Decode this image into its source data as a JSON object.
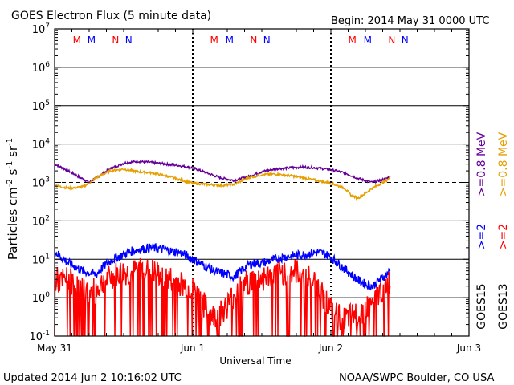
{
  "header": {
    "title": "GOES Electron Flux (5 minute data)",
    "begin": "Begin: 2014 May 31 0000 UTC"
  },
  "footer": {
    "updated": "Updated 2014 Jun  2 10:16:02 UTC",
    "credit": "NOAA/SWPC Boulder, CO USA"
  },
  "colors": {
    "goes15_high": "#0000ff",
    "goes13_high": "#ff0000",
    "goes15_low": "#660099",
    "goes13_low": "#e69f00",
    "frame": "#000000",
    "background": "#ffffff"
  },
  "chart_data": {
    "type": "line",
    "title": "GOES Electron Flux (5 minute data)",
    "xlabel": "Universal Time",
    "ylabel": "Particles cm^-2 s^-1 sr^-1",
    "y_scale": "log",
    "ylim_exponents": [
      -1,
      7
    ],
    "y_tick_exponents": [
      -1,
      0,
      1,
      2,
      3,
      4,
      5,
      6,
      7
    ],
    "xlim_days": [
      0,
      3
    ],
    "x_ticks": [
      {
        "day": 0,
        "label": "May 31"
      },
      {
        "day": 1,
        "label": "Jun 1"
      },
      {
        "day": 2,
        "label": "Jun 2"
      },
      {
        "day": 3,
        "label": "Jun 3"
      }
    ],
    "day_boundaries": [
      1,
      2
    ],
    "threshold_line_exponent": 3,
    "horizontal_grid_exponents": [
      0,
      1,
      2,
      4,
      5,
      6
    ],
    "grid": true,
    "markers": [
      {
        "label": "M",
        "day": 0.162,
        "color": "#ff0000"
      },
      {
        "label": "M",
        "day": 0.267,
        "color": "#0000ff"
      },
      {
        "label": "N",
        "day": 0.441,
        "color": "#ff0000"
      },
      {
        "label": "N",
        "day": 0.536,
        "color": "#0000ff"
      },
      {
        "label": "M",
        "day": 1.155,
        "color": "#ff0000"
      },
      {
        "label": "M",
        "day": 1.266,
        "color": "#0000ff"
      },
      {
        "label": "N",
        "day": 1.441,
        "color": "#ff0000"
      },
      {
        "label": "N",
        "day": 1.536,
        "color": "#0000ff"
      },
      {
        "label": "M",
        "day": 2.155,
        "color": "#ff0000"
      },
      {
        "label": "M",
        "day": 2.266,
        "color": "#0000ff"
      },
      {
        "label": "N",
        "day": 2.441,
        "color": "#ff0000"
      },
      {
        "label": "N",
        "day": 2.536,
        "color": "#0000ff"
      }
    ],
    "legend": [
      {
        "group": "GOES13",
        "labels": [
          ">=2",
          ">=0.8 MeV"
        ],
        "colors": [
          "#ff0000",
          "#e69f00"
        ]
      },
      {
        "group": "GOES15",
        "labels": [
          ">=2",
          ">=0.8 MeV"
        ],
        "colors": [
          "#0000ff",
          "#660099"
        ]
      }
    ],
    "series": [
      {
        "name": "GOES15 >=0.8 MeV",
        "color": "#660099",
        "x": [
          0,
          0.1,
          0.2,
          0.25,
          0.3,
          0.4,
          0.5,
          0.6,
          0.7,
          0.8,
          0.9,
          1.0,
          1.1,
          1.2,
          1.3,
          1.4,
          1.5,
          1.6,
          1.7,
          1.8,
          1.9,
          2.0,
          2.1,
          2.2,
          2.3,
          2.35,
          2.4,
          2.43
        ],
        "values_log10": [
          3.48,
          3.3,
          3.1,
          3.0,
          3.12,
          3.35,
          3.5,
          3.55,
          3.52,
          3.48,
          3.44,
          3.38,
          3.25,
          3.12,
          3.05,
          3.15,
          3.28,
          3.35,
          3.38,
          3.4,
          3.38,
          3.33,
          3.25,
          3.1,
          3.0,
          3.05,
          3.1,
          3.15
        ]
      },
      {
        "name": "GOES13 >=0.8 MeV",
        "color": "#e69f00",
        "x": [
          0,
          0.1,
          0.2,
          0.25,
          0.3,
          0.4,
          0.5,
          0.6,
          0.7,
          0.8,
          0.9,
          1.0,
          1.1,
          1.2,
          1.3,
          1.4,
          1.5,
          1.6,
          1.7,
          1.8,
          1.9,
          2.0,
          2.1,
          2.15,
          2.2,
          2.25,
          2.3,
          2.35,
          2.4,
          2.43
        ],
        "values_log10": [
          2.92,
          2.85,
          2.88,
          2.98,
          3.12,
          3.3,
          3.35,
          3.28,
          3.25,
          3.18,
          3.08,
          2.98,
          2.95,
          2.92,
          2.95,
          3.12,
          3.2,
          3.22,
          3.18,
          3.12,
          3.05,
          2.98,
          2.85,
          2.65,
          2.6,
          2.72,
          2.85,
          2.95,
          3.05,
          3.12
        ]
      },
      {
        "name": "GOES15 >=2 MeV",
        "color": "#0000ff",
        "x": [
          0,
          0.05,
          0.1,
          0.15,
          0.2,
          0.25,
          0.3,
          0.35,
          0.4,
          0.45,
          0.5,
          0.55,
          0.6,
          0.65,
          0.7,
          0.75,
          0.8,
          0.85,
          0.9,
          0.95,
          1.0,
          1.05,
          1.1,
          1.15,
          1.2,
          1.25,
          1.3,
          1.35,
          1.4,
          1.45,
          1.5,
          1.55,
          1.6,
          1.65,
          1.7,
          1.75,
          1.8,
          1.85,
          1.9,
          1.95,
          2.0,
          2.05,
          2.1,
          2.15,
          2.2,
          2.25,
          2.3,
          2.35,
          2.4,
          2.43
        ],
        "values_log10": [
          1.2,
          1.05,
          0.9,
          0.8,
          0.7,
          0.65,
          0.6,
          0.8,
          0.95,
          1.05,
          1.12,
          1.2,
          1.25,
          1.28,
          1.3,
          1.28,
          1.25,
          1.2,
          1.18,
          1.1,
          1.0,
          0.9,
          0.8,
          0.7,
          0.65,
          0.6,
          0.55,
          0.7,
          0.85,
          0.9,
          0.9,
          0.95,
          1.0,
          1.05,
          1.08,
          1.1,
          1.12,
          1.15,
          1.18,
          1.15,
          1.05,
          0.9,
          0.75,
          0.6,
          0.45,
          0.35,
          0.3,
          0.45,
          0.6,
          0.7
        ]
      },
      {
        "name": "GOES13 >=2 MeV",
        "color": "#ff0000",
        "x": [
          0,
          0.05,
          0.1,
          0.15,
          0.2,
          0.25,
          0.3,
          0.35,
          0.4,
          0.45,
          0.5,
          0.55,
          0.6,
          0.65,
          0.7,
          0.75,
          0.8,
          0.85,
          0.9,
          0.95,
          1.0,
          1.05,
          1.1,
          1.15,
          1.2,
          1.25,
          1.3,
          1.35,
          1.4,
          1.45,
          1.5,
          1.55,
          1.6,
          1.65,
          1.7,
          1.75,
          1.8,
          1.85,
          1.9,
          1.95,
          2.0,
          2.05,
          2.1,
          2.15,
          2.2,
          2.25,
          2.3,
          2.35,
          2.4,
          2.43
        ],
        "values_log10": [
          0.5,
          0.4,
          0.5,
          0.3,
          0.2,
          0.1,
          0.2,
          0.4,
          0.5,
          0.6,
          0.65,
          0.6,
          0.7,
          0.75,
          0.7,
          0.6,
          0.5,
          0.45,
          0.4,
          0.3,
          0.2,
          0.0,
          -0.3,
          -0.5,
          -0.4,
          -0.2,
          0.1,
          0.3,
          0.4,
          0.45,
          0.5,
          0.55,
          0.6,
          0.65,
          0.7,
          0.65,
          0.6,
          0.5,
          0.3,
          0.0,
          -0.3,
          -0.5,
          -0.6,
          -0.5,
          -0.4,
          -0.3,
          -0.2,
          0.1,
          0.3,
          0.4
        ]
      }
    ]
  }
}
